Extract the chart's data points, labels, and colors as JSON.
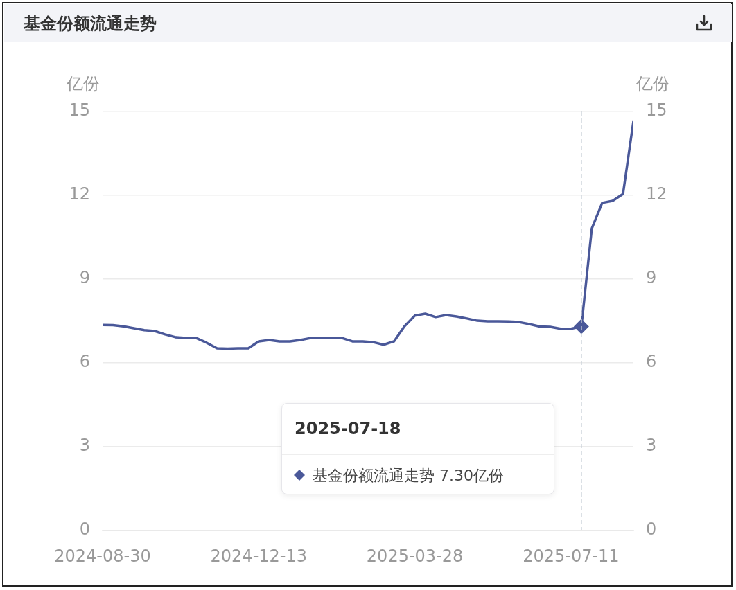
{
  "chart_data": {
    "type": "line",
    "title": "基金份额流通走势",
    "ylabel": "亿份",
    "y2label": "亿份",
    "x": [
      "2024-08-30",
      "2024-09-06",
      "2024-09-13",
      "2024-09-20",
      "2024-09-27",
      "2024-10-04",
      "2024-10-11",
      "2024-10-18",
      "2024-10-25",
      "2024-11-01",
      "2024-11-08",
      "2024-11-15",
      "2024-11-22",
      "2024-11-29",
      "2024-12-06",
      "2024-12-13",
      "2024-12-20",
      "2024-12-27",
      "2025-01-03",
      "2025-01-10",
      "2025-01-17",
      "2025-01-24",
      "2025-01-31",
      "2025-02-07",
      "2025-02-14",
      "2025-02-21",
      "2025-02-28",
      "2025-03-07",
      "2025-03-14",
      "2025-03-21",
      "2025-03-28",
      "2025-04-04",
      "2025-04-11",
      "2025-04-18",
      "2025-04-25",
      "2025-05-02",
      "2025-05-09",
      "2025-05-16",
      "2025-05-23",
      "2025-05-30",
      "2025-06-06",
      "2025-06-13",
      "2025-06-20",
      "2025-06-27",
      "2025-07-04",
      "2025-07-11",
      "2025-07-18",
      "2025-07-25",
      "2025-08-01",
      "2025-08-08",
      "2025-08-15",
      "2025-08-22"
    ],
    "series": [
      {
        "type": "scatter",
        "color": "#4a5899",
        "marker": "diamond",
        "x": [
          "2025-07-18"
        ],
        "values": [
          7.3
        ]
      },
      {
        "color": "#4a5899",
        "values": [
          7.36,
          7.35,
          7.31,
          7.24,
          7.17,
          7.14,
          7.02,
          6.92,
          6.89,
          6.89,
          6.72,
          6.52,
          6.51,
          6.52,
          6.52,
          6.77,
          6.82,
          6.77,
          6.77,
          6.82,
          6.89,
          6.89,
          6.89,
          6.89,
          6.77,
          6.77,
          6.74,
          6.65,
          6.77,
          7.31,
          7.69,
          7.76,
          7.64,
          7.71,
          7.66,
          7.59,
          7.51,
          7.49,
          7.49,
          7.48,
          7.46,
          7.39,
          7.3,
          7.29,
          7.22,
          7.22,
          7.3,
          10.81,
          11.73,
          11.8,
          12.05,
          14.65
        ]
      }
    ],
    "xlim": [
      "2024-08-30",
      "2025-08-22"
    ],
    "xticks": [
      "2024-08-30",
      "2024-12-13",
      "2025-03-28",
      "2025-07-11"
    ],
    "ylim": [
      0,
      15
    ],
    "yticks": [
      0,
      3,
      6,
      9,
      12,
      15
    ],
    "y2lim": [
      0,
      15
    ],
    "y2ticks": [
      0,
      3,
      6,
      9,
      12,
      15
    ],
    "grid": "y",
    "legend": false,
    "ref_lines": [
      {
        "axis": "x",
        "value": "2025-07-18",
        "label": null,
        "color": "#c8d0d8",
        "line_style": "dashed"
      }
    ],
    "annotations": [
      "2025-07-18",
      "基金份额流通走势 7.30亿份"
    ]
  }
}
